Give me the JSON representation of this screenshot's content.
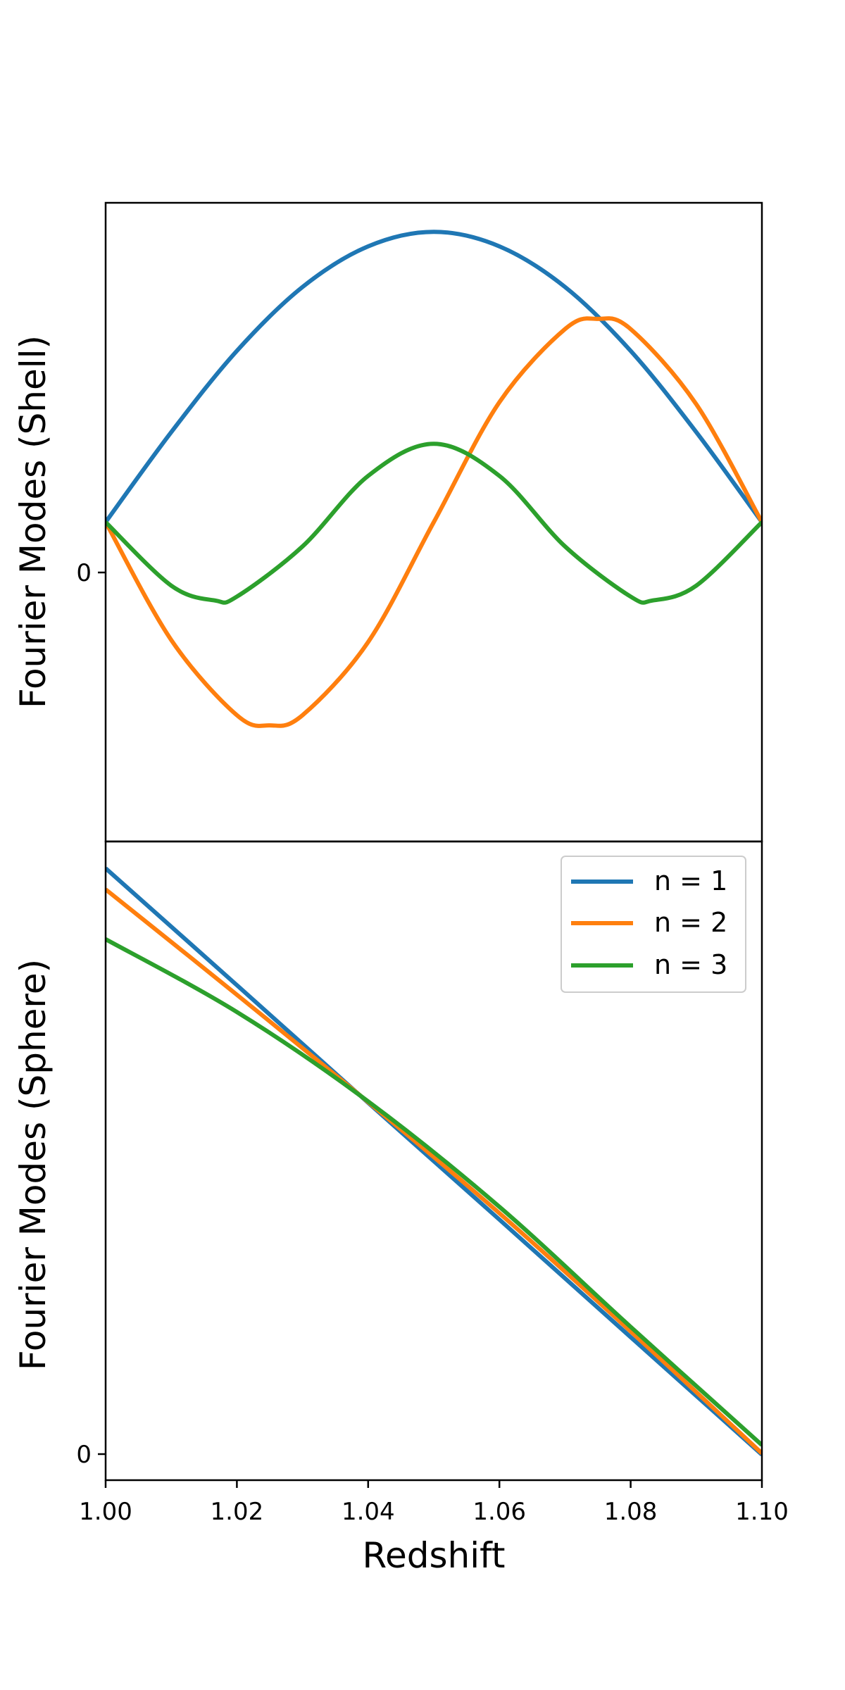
{
  "colors": {
    "series_1": "#1f77b4",
    "series_2": "#ff7f0e",
    "series_3": "#2ca02c",
    "axes": "#000000",
    "background": "#ffffff"
  },
  "chart_data": [
    {
      "type": "line",
      "panel": "top",
      "ylabel": "Fourier Modes (Shell)",
      "xlim": [
        1.0,
        1.1
      ],
      "ylim": [
        -1.1,
        1.1
      ],
      "yticks": [
        {
          "value": 0,
          "label": "0"
        }
      ],
      "x_tick_labels_shown": false,
      "series": [
        {
          "name": "n = 1",
          "x": [
            1.0,
            1.01,
            1.02,
            1.03,
            1.04,
            1.05,
            1.06,
            1.07,
            1.08,
            1.09,
            1.1
          ],
          "y": [
            0.0,
            0.31,
            0.59,
            0.81,
            0.95,
            1.0,
            0.95,
            0.81,
            0.59,
            0.31,
            0.0
          ]
        },
        {
          "name": "n = 2",
          "x": [
            1.0,
            1.01,
            1.02,
            1.025,
            1.03,
            1.04,
            1.05,
            1.06,
            1.07,
            1.075,
            1.08,
            1.09,
            1.1
          ],
          "y": [
            0.0,
            -0.58,
            -0.95,
            -1.0,
            -0.95,
            -0.59,
            0.0,
            0.59,
            0.95,
            1.0,
            0.95,
            0.58,
            0.0
          ]
        },
        {
          "name": "n = 3",
          "x": [
            1.0,
            1.01,
            1.0167,
            1.02,
            1.03,
            1.04,
            1.05,
            1.06,
            1.07,
            1.08,
            1.0833,
            1.09,
            1.1
          ],
          "y": [
            0.0,
            -0.81,
            -1.0,
            -0.95,
            -0.31,
            0.59,
            1.0,
            0.59,
            -0.31,
            -0.95,
            -1.0,
            -0.81,
            0.0
          ]
        }
      ],
      "series_display_scale": [
        1.0,
        0.7,
        0.27
      ]
    },
    {
      "type": "line",
      "panel": "bottom",
      "ylabel": "Fourier Modes (Sphere)",
      "xlabel": "Redshift",
      "xlim": [
        1.0,
        1.1
      ],
      "ylim": [
        -0.04,
        0.96
      ],
      "xticks": [
        {
          "value": 1.0,
          "label": "1.00"
        },
        {
          "value": 1.02,
          "label": "1.02"
        },
        {
          "value": 1.04,
          "label": "1.04"
        },
        {
          "value": 1.06,
          "label": "1.06"
        },
        {
          "value": 1.08,
          "label": "1.08"
        },
        {
          "value": 1.1,
          "label": "1.10"
        }
      ],
      "yticks": [
        {
          "value": 0,
          "label": "0"
        }
      ],
      "legend": {
        "placement": "upper right",
        "entries": [
          "n = 1",
          "n = 2",
          "n = 3"
        ]
      },
      "series": [
        {
          "name": "n = 1",
          "x": [
            1.0,
            1.02,
            1.04,
            1.06,
            1.08,
            1.1
          ],
          "y": [
            0.918,
            0.735,
            0.551,
            0.368,
            0.184,
            0.0
          ]
        },
        {
          "name": "n = 2",
          "x": [
            1.0,
            1.02,
            1.04,
            1.06,
            1.08,
            1.1
          ],
          "y": [
            0.885,
            0.72,
            0.552,
            0.378,
            0.193,
            0.002
          ]
        },
        {
          "name": "n = 3",
          "x": [
            1.0,
            1.02,
            1.04,
            1.06,
            1.08,
            1.1
          ],
          "y": [
            0.807,
            0.693,
            0.553,
            0.388,
            0.2,
            0.015
          ]
        }
      ]
    }
  ]
}
